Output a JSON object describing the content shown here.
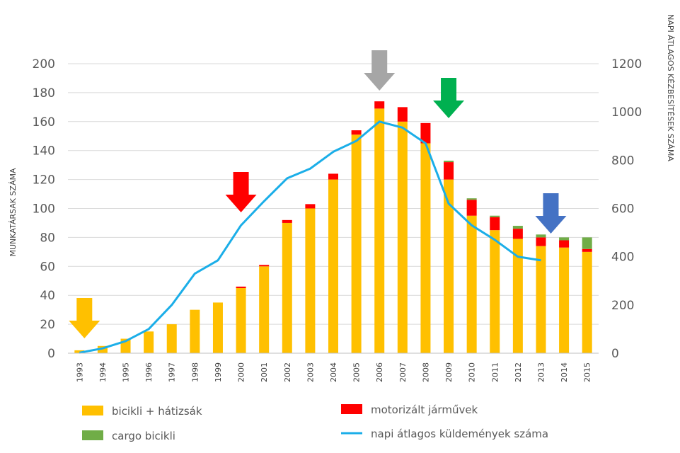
{
  "chart_data": {
    "type": "bar",
    "categories": [
      "1993",
      "1994",
      "1995",
      "1996",
      "1997",
      "1998",
      "1999",
      "2000",
      "2001",
      "2002",
      "2003",
      "2004",
      "2005",
      "2006",
      "2007",
      "2008",
      "2009",
      "2010",
      "2011",
      "2012",
      "2013",
      "2014",
      "2015"
    ],
    "ylabel": "MUNKATÁRSAK SZÁMA",
    "y2label": "NAPI ÁTLAGOS KÉZBESÍTÉSEK SZÁMA",
    "ylim": [
      0,
      200
    ],
    "y2lim": [
      0,
      1200
    ],
    "yticks": [
      "0",
      "20",
      "40",
      "60",
      "80",
      "100",
      "120",
      "140",
      "160",
      "180",
      "200"
    ],
    "y2ticks": [
      "0",
      "200",
      "400",
      "600",
      "800",
      "1000",
      "1200"
    ],
    "grid": true,
    "legend_position": "bottom",
    "series": [
      {
        "name": "bicikli + hátizsák",
        "type": "bar",
        "color": "#FFC000",
        "values": [
          2,
          5,
          10,
          15,
          20,
          30,
          35,
          45,
          60,
          90,
          100,
          120,
          151,
          169,
          160,
          145,
          120,
          95,
          85,
          79,
          74,
          73,
          70
        ]
      },
      {
        "name": "motorizált járművek",
        "type": "bar",
        "color": "#FF0000",
        "values": [
          0,
          0,
          0,
          0,
          0,
          0,
          0,
          1,
          1,
          2,
          3,
          4,
          3,
          5,
          10,
          14,
          12,
          11,
          9,
          7,
          6,
          5,
          2
        ]
      },
      {
        "name": "cargo bicikli",
        "type": "bar",
        "color": "#70AD47",
        "values": [
          0,
          0,
          0,
          0,
          0,
          0,
          0,
          0,
          0,
          0,
          0,
          0,
          0,
          0,
          0,
          0,
          1,
          1,
          1,
          2,
          2,
          2,
          8
        ]
      },
      {
        "name": "napi átlagos küldemények száma",
        "type": "line",
        "axis": "secondary",
        "color": "#1BAEE8",
        "values": [
          2,
          20,
          50,
          100,
          200,
          330,
          385,
          530,
          630,
          725,
          765,
          835,
          880,
          960,
          935,
          870,
          620,
          530,
          470,
          400,
          385,
          null,
          null
        ]
      }
    ],
    "arrows": [
      {
        "year": "1993",
        "color": "#FFC000"
      },
      {
        "year": "2000",
        "color": "#FF0000"
      },
      {
        "year": "2006",
        "color": "#A6A6A6"
      },
      {
        "year": "2009",
        "color": "#00B050"
      },
      {
        "year": "2013",
        "color": "#4472C4"
      }
    ]
  }
}
